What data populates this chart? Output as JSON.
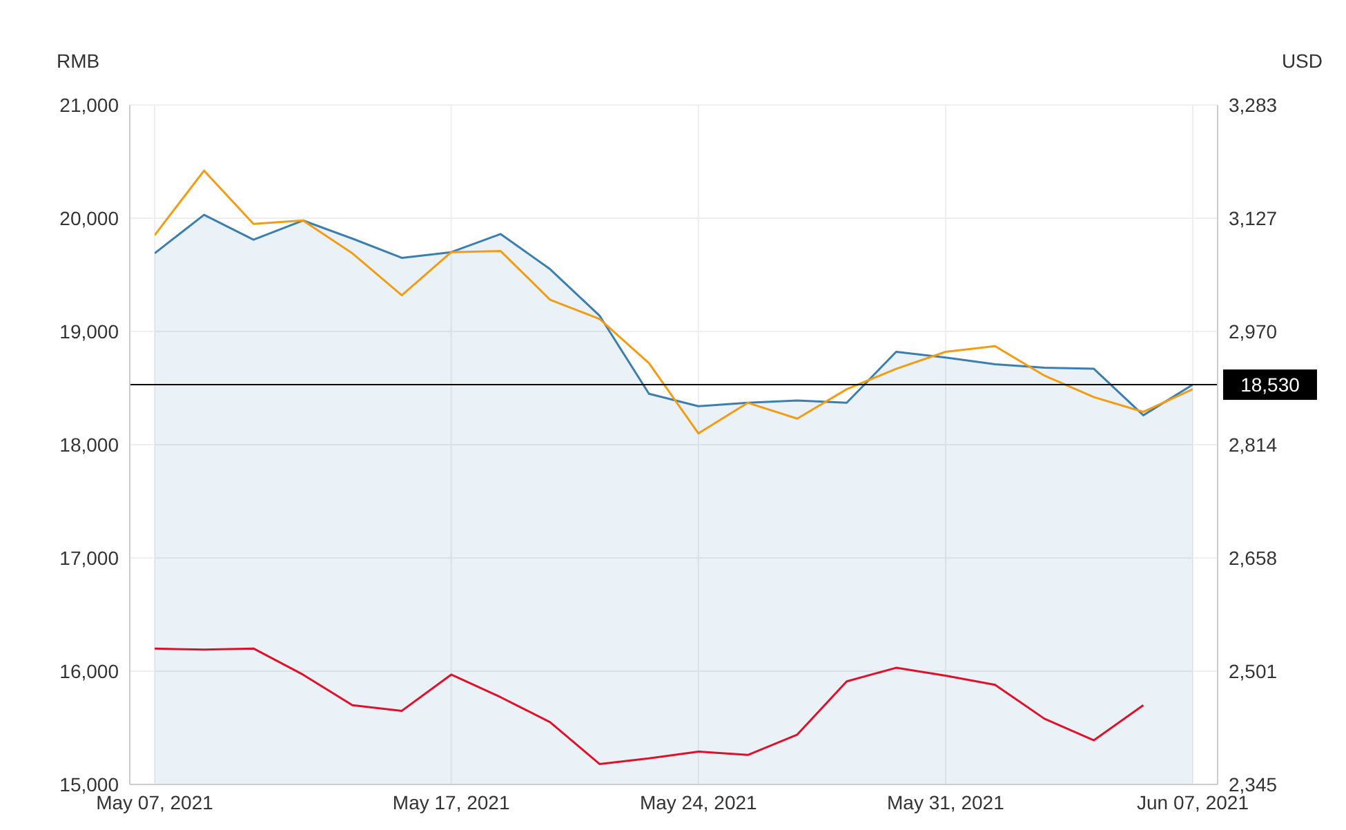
{
  "chart_data": {
    "type": "line",
    "ylabel": "RMB",
    "y2label": "USD",
    "categories": [
      "May 07, 2021",
      null,
      null,
      null,
      null,
      null,
      "May 17, 2021",
      null,
      null,
      null,
      null,
      "May 24, 2021",
      null,
      null,
      null,
      null,
      "May 31, 2021",
      null,
      null,
      null,
      null,
      "Jun 07, 2021"
    ],
    "series": [
      {
        "type": "area",
        "color": "#3a7fb0",
        "values": [
          19690,
          20030,
          19810,
          19980,
          19820,
          19650,
          19700,
          19860,
          19550,
          19140,
          18450,
          18340,
          18370,
          18390,
          18370,
          18820,
          18770,
          18710,
          18680,
          18670,
          18260,
          18530
        ]
      },
      {
        "color": "#f39c12",
        "values": [
          19850,
          20420,
          19950,
          19980,
          19690,
          19320,
          19700,
          19710,
          19280,
          19110,
          18720,
          18100,
          18370,
          18230,
          18490,
          18670,
          18820,
          18870,
          18610,
          18420,
          18290,
          18490
        ]
      },
      {
        "color": "#e0102a",
        "values": [
          16200,
          16190,
          16200,
          15970,
          15700,
          15650,
          15970,
          15770,
          15550,
          15180,
          15230,
          15290,
          15260,
          15440,
          15910,
          16030,
          15960,
          15880,
          15580,
          15390,
          15700,
          null
        ]
      }
    ],
    "ylim": [
      15000,
      21000
    ],
    "yticks": [
      {
        "value": 15000,
        "label": "15,000"
      },
      {
        "value": 16000,
        "label": "16,000"
      },
      {
        "value": 17000,
        "label": "17,000"
      },
      {
        "value": 18000,
        "label": "18,000"
      },
      {
        "value": 19000,
        "label": "19,000"
      },
      {
        "value": 20000,
        "label": "20,000"
      },
      {
        "value": 21000,
        "label": "21,000"
      }
    ],
    "y2lim": [
      2345,
      3283
    ],
    "y2ticks": [
      {
        "value": 2345,
        "label": "2,345"
      },
      {
        "value": 2501,
        "label": "2,501"
      },
      {
        "value": 2658,
        "label": "2,658"
      },
      {
        "value": 2814,
        "label": "2,814"
      },
      {
        "value": 2970,
        "label": "2,970"
      },
      {
        "value": 3127,
        "label": "3,127"
      },
      {
        "value": 3283,
        "label": "3,283"
      }
    ],
    "ref_lines": [
      {
        "axis": "y",
        "value": 18530,
        "label": "18,530",
        "color": "#000000"
      }
    ],
    "grid": true,
    "marker": "none",
    "line_style": "solid"
  }
}
